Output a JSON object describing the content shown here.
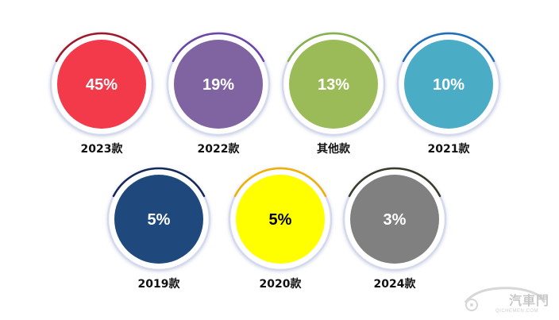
{
  "chart_data": {
    "type": "bubble-percent",
    "unit": "%",
    "rows": [
      [
        {
          "label": "2023款",
          "value": 45,
          "display": "45%",
          "color": "#f23a4a",
          "ring": "#a01828"
        },
        {
          "label": "2022款",
          "value": 19,
          "display": "19%",
          "color": "#8064a2",
          "ring": "#6b45a6"
        },
        {
          "label": "其他款",
          "value": 13,
          "display": "13%",
          "color": "#9bbb59",
          "ring": "#86b04a"
        },
        {
          "label": "2021款",
          "value": 10,
          "display": "10%",
          "color": "#4bacc6",
          "ring": "#1f6fb8"
        }
      ],
      [
        {
          "label": "2019款",
          "value": 5,
          "display": "5%",
          "color": "#1f497d",
          "ring": "#13295a"
        },
        {
          "label": "2020款",
          "value": 5,
          "display": "5%",
          "color": "#ffff00",
          "ring": "#f0b000"
        },
        {
          "label": "2024款",
          "value": 3,
          "display": "3%",
          "color": "#808080",
          "ring": "#3a3a2a"
        }
      ]
    ],
    "value_text_colors": {
      "default": "#ffffff",
      "on_light": "#000000"
    },
    "label_color": "#111111"
  },
  "watermark": {
    "text": "汽車門",
    "sub": "QICHEMEN.COM"
  }
}
